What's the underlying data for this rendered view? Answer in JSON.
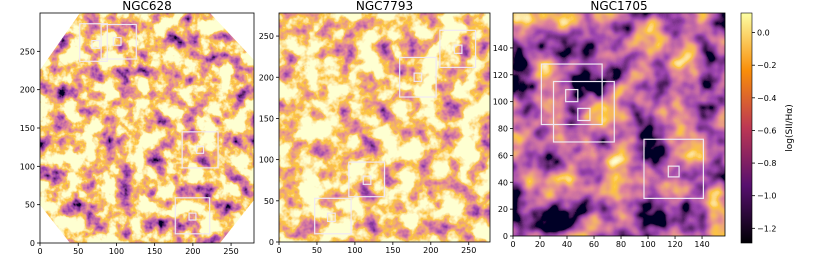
{
  "chart_data": [
    {
      "type": "image",
      "title": "NGC628",
      "xlim": [
        0,
        280
      ],
      "ylim": [
        0,
        300
      ],
      "xticks": [
        0,
        50,
        100,
        150,
        200,
        250
      ],
      "yticks": [
        0,
        50,
        100,
        150,
        200,
        250
      ],
      "boxes": [
        {
          "x": [
            52,
            88
          ],
          "y": [
            237,
            286
          ]
        },
        {
          "x": [
            68,
            78
          ],
          "y": [
            254,
            264
          ]
        },
        {
          "x": [
            80,
            126
          ],
          "y": [
            240,
            285
          ]
        },
        {
          "x": [
            96,
            106
          ],
          "y": [
            258,
            268
          ]
        },
        {
          "x": [
            186,
            233
          ],
          "y": [
            98,
            145
          ]
        },
        {
          "x": [
            205,
            214
          ],
          "y": [
            117,
            126
          ]
        },
        {
          "x": [
            177,
            222
          ],
          "y": [
            12,
            59
          ]
        },
        {
          "x": [
            195,
            204
          ],
          "y": [
            30,
            39
          ]
        }
      ]
    },
    {
      "type": "image",
      "title": "NGC7793",
      "xlim": [
        0,
        278
      ],
      "ylim": [
        0,
        278
      ],
      "xticks": [
        0,
        50,
        100,
        150,
        200,
        250
      ],
      "yticks": [
        0,
        50,
        100,
        150,
        200,
        250
      ],
      "boxes": [
        {
          "x": [
            159,
            207
          ],
          "y": [
            176,
            224
          ]
        },
        {
          "x": [
            178,
            188
          ],
          "y": [
            195,
            205
          ]
        },
        {
          "x": [
            212,
            259
          ],
          "y": [
            212,
            257
          ]
        },
        {
          "x": [
            231,
            241
          ],
          "y": [
            229,
            239
          ]
        },
        {
          "x": [
            92,
            139
          ],
          "y": [
            55,
            97
          ]
        },
        {
          "x": [
            111,
            121
          ],
          "y": [
            70,
            80
          ]
        },
        {
          "x": [
            47,
            95
          ],
          "y": [
            10,
            53
          ]
        },
        {
          "x": [
            64,
            74
          ],
          "y": [
            25,
            35
          ]
        }
      ]
    },
    {
      "type": "image",
      "title": "NGC1705",
      "xlim": [
        0,
        157
      ],
      "ylim": [
        0,
        166
      ],
      "xticks": [
        0,
        20,
        40,
        60,
        80,
        100,
        120,
        140
      ],
      "yticks": [
        0,
        20,
        40,
        60,
        80,
        100,
        120,
        140
      ],
      "boxes": [
        {
          "x": [
            21,
            66
          ],
          "y": [
            83,
            128
          ]
        },
        {
          "x": [
            39,
            48
          ],
          "y": [
            100,
            109
          ]
        },
        {
          "x": [
            30,
            75
          ],
          "y": [
            70,
            115
          ]
        },
        {
          "x": [
            48,
            57
          ],
          "y": [
            86,
            95
          ]
        },
        {
          "x": [
            97,
            141
          ],
          "y": [
            28,
            72
          ]
        },
        {
          "x": [
            115,
            123
          ],
          "y": [
            44,
            52
          ]
        }
      ],
      "colorbar": {
        "label": "log(SII/Hα)",
        "lim": [
          -1.29,
          0.12
        ],
        "ticks": [
          {
            "value": 0,
            "label": "0.0"
          },
          {
            "value": -0.2,
            "label": "−0.2"
          },
          {
            "value": -0.4,
            "label": "−0.4"
          },
          {
            "value": -0.6,
            "label": "−0.6"
          },
          {
            "value": -0.8,
            "label": "−0.8"
          },
          {
            "value": -1.0,
            "label": "−1.0"
          },
          {
            "value": -1.2,
            "label": "−1.2"
          }
        ]
      }
    }
  ]
}
